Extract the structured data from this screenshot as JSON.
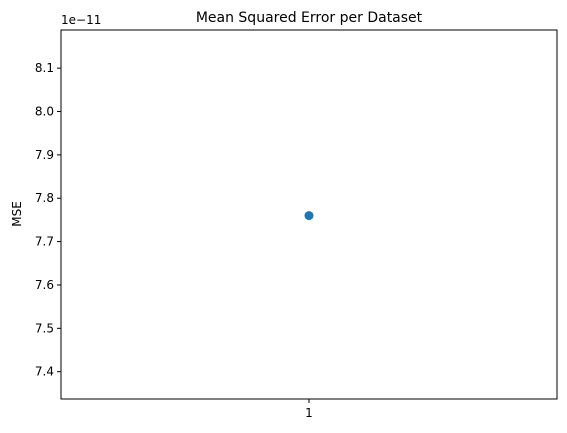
{
  "chart_data": {
    "type": "scatter",
    "title": "Mean Squared Error per Dataset",
    "xlabel": "",
    "ylabel": "MSE",
    "offset_label": "1e−11",
    "x_ticks": [
      "1"
    ],
    "y_ticks": [
      "7.4",
      "7.5",
      "7.6",
      "7.7",
      "7.8",
      "7.9",
      "8.0",
      "8.1"
    ],
    "y_tick_values": [
      7.4,
      7.5,
      7.6,
      7.7,
      7.8,
      7.9,
      8.0,
      8.1
    ],
    "xlim": [
      0.5,
      1.5
    ],
    "ylim": [
      7.337,
      8.188
    ],
    "series": [
      {
        "x": [
          1
        ],
        "y": [
          7.76
        ]
      }
    ],
    "grid": false,
    "marker_color": "#1f77b4"
  }
}
